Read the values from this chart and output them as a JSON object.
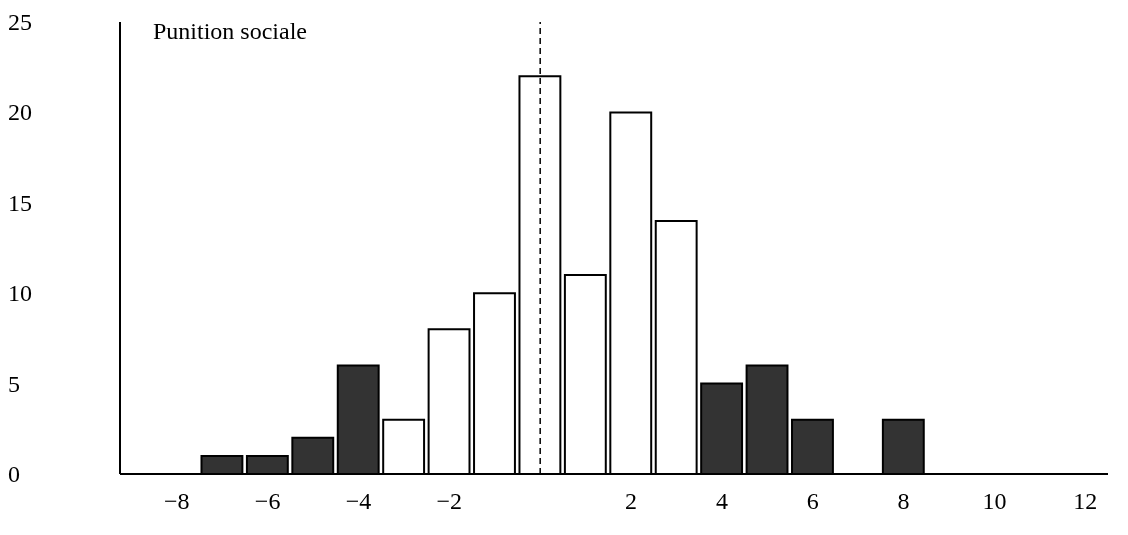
{
  "chart_data": {
    "type": "histogram",
    "title": "Punition sociale",
    "bins": [
      -7.5,
      -6.5,
      -5.5,
      -4.5,
      -3.5,
      -2.5,
      -1.5,
      -0.5,
      0.5,
      1.5,
      2.5,
      3.5,
      4.5,
      5.5,
      6.5,
      7.5,
      8.5
    ],
    "values": [
      1,
      1,
      2,
      6,
      3,
      8,
      10,
      22,
      11,
      20,
      14,
      5,
      6,
      3,
      0,
      3
    ],
    "colors": [
      "#333333",
      "#333333",
      "#333333",
      "#333333",
      "#ffffff",
      "#ffffff",
      "#ffffff",
      "#ffffff",
      "#ffffff",
      "#ffffff",
      "#ffffff",
      "#333333",
      "#333333",
      "#333333",
      "#333333",
      "#333333"
    ],
    "xlim": [
      -9.25,
      12.5
    ],
    "xticks": [
      {
        "value": -8,
        "label": "−8"
      },
      {
        "value": -6,
        "label": "−6"
      },
      {
        "value": -4,
        "label": "−4"
      },
      {
        "value": -2,
        "label": "−2"
      },
      2,
      4,
      6,
      8,
      10,
      12
    ],
    "ylim": [
      0,
      25
    ],
    "yticks": [
      0,
      5,
      10,
      15,
      20,
      25
    ],
    "ref_lines": [
      {
        "axis": "x",
        "value": 0,
        "line_style": "dashed"
      }
    ]
  }
}
